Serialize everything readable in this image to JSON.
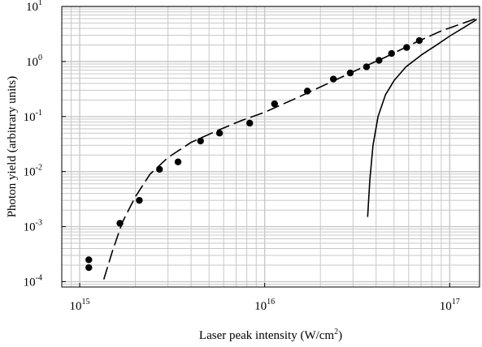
{
  "chart_data": {
    "type": "scatter",
    "xlabel": "Laser peak intensity (W/cm",
    "xlabel_sup": "2",
    "xlabel_tail": ")",
    "ylabel": "Photon yield (arbitrary units)",
    "xscale": "log",
    "yscale": "log",
    "xlim": [
      800000000000000.0,
      1.45e+17
    ],
    "ylim": [
      8e-05,
      10
    ],
    "grid": true,
    "x_ticks": [
      {
        "value": 1000000000000000.0,
        "base": "10",
        "exp": "15"
      },
      {
        "value": 1e+16,
        "base": "10",
        "exp": "16"
      },
      {
        "value": 1e+17,
        "base": "10",
        "exp": "17"
      }
    ],
    "y_ticks": [
      {
        "value": 0.0001,
        "base": "10",
        "exp": "-4"
      },
      {
        "value": 0.001,
        "base": "10",
        "exp": "-3"
      },
      {
        "value": 0.01,
        "base": "10",
        "exp": "-2"
      },
      {
        "value": 0.1,
        "base": "10",
        "exp": "-1"
      },
      {
        "value": 1,
        "base": "10",
        "exp": "0"
      },
      {
        "value": 10,
        "base": "10",
        "exp": "1"
      }
    ],
    "series": [
      {
        "style": "markers",
        "x": [
          1120000000000000.0,
          1120000000000000.0,
          1650000000000000.0,
          2100000000000000.0,
          2700000000000000.0,
          3400000000000000.0,
          4500000000000000.0,
          5700000000000000.0,
          8300000000000000.0,
          1.13e+16,
          1.7e+16,
          2.35e+16,
          2.9e+16,
          3.55e+16,
          4.15e+16,
          4.85e+16,
          5.85e+16,
          6.85e+16
        ],
        "y": [
          0.00025,
          0.00018,
          0.00115,
          0.003,
          0.011,
          0.015,
          0.036,
          0.05,
          0.076,
          0.17,
          0.29,
          0.48,
          0.62,
          0.8,
          1.05,
          1.4,
          1.8,
          2.4
        ]
      },
      {
        "style": "dashed",
        "x": [
          1350000000000000.0,
          1500000000000000.0,
          1700000000000000.0,
          2000000000000000.0,
          2400000000000000.0,
          3000000000000000.0,
          4000000000000000.0,
          5500000000000000.0,
          7500000000000000.0,
          1e+16,
          1.5e+16,
          2.2e+16,
          3.2e+16,
          4.5e+16,
          6.5e+16,
          9e+16,
          1.15e+17,
          1.38e+17
        ],
        "y": [
          0.00011,
          0.00035,
          0.0012,
          0.0035,
          0.009,
          0.018,
          0.034,
          0.055,
          0.085,
          0.12,
          0.22,
          0.4,
          0.72,
          1.2,
          2.2,
          3.6,
          4.8,
          6.0
        ]
      },
      {
        "style": "solid",
        "x": [
          3.6e+16,
          3.7e+16,
          3.85e+16,
          4.1e+16,
          4.5e+16,
          5e+16,
          5.8e+16,
          7e+16,
          8.5e+16,
          1e+17,
          1.2e+17,
          1.4e+17
        ],
        "y": [
          0.0015,
          0.007,
          0.03,
          0.1,
          0.25,
          0.45,
          0.8,
          1.3,
          2.0,
          2.9,
          4.2,
          5.8
        ]
      }
    ]
  }
}
